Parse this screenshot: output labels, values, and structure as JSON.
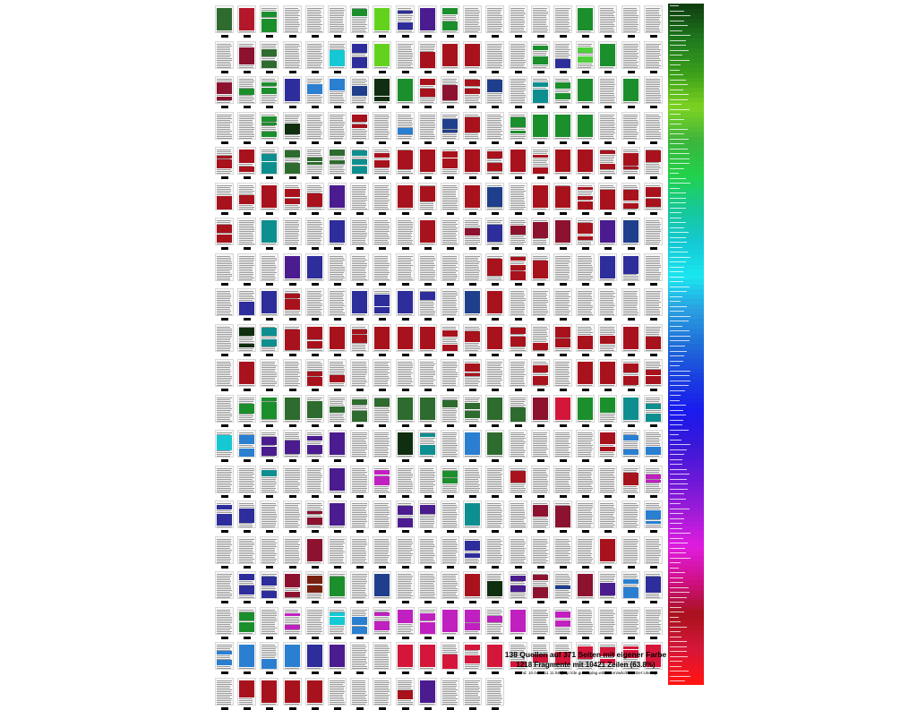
{
  "poster": {
    "footer": {
      "line1": "138 Quellen auf 371 Seiten mit eigener Farbe",
      "line2": "1218 Fragmente mit 10421 Zeilen (63.8%)",
      "line3": "Stand: 10.04.2011 11:58 (http://de.guttenplag.wikia.com/wiki/Benutzer:Ukwin)"
    },
    "grid": {
      "columns": 20,
      "rows": 19,
      "cell_colors": [
        "#2e6b2e",
        "#b4162a",
        "#1b8f2c",
        "#ffffff",
        "#ffffff",
        "#ffffff",
        "#1b8f2c",
        "#63d21d",
        "#2d2d9b",
        "#4a1c8f",
        "#1b8f2c",
        "#ffffff",
        "#ffffff",
        "#ffffff",
        "#ffffff",
        "#ffffff",
        "#1b8f2c",
        "#ffffff",
        "#ffffff",
        "#ffffff",
        "#ffffff",
        "#8c1230",
        "#2e6b2e",
        "#ffffff",
        "#ffffff",
        "#14c9d4",
        "#2d2d9b",
        "#63d21d",
        "#ffffff",
        "#a8121c",
        "#a8121c",
        "#a8121c",
        "#ffffff",
        "#ffffff",
        "#1b8f2c",
        "#2d2d9b",
        "#4fcf3b",
        "#1b8f2c",
        "#ffffff",
        "#ffffff",
        "#8c1230",
        "#1b8f2c",
        "#1b8f2c",
        "#2d2d9b",
        "#2a7fd1",
        "#2a7fd1",
        "#1f3f8c",
        "#102e10",
        "#1b8f2c",
        "#a8121c",
        "#8c1230",
        "#a8121c",
        "#1f3f8c",
        "#ffffff",
        "#0e8f8f",
        "#1b8f2c",
        "#1b8f2c",
        "#ffffff",
        "#1b8f2c",
        "#ffffff",
        "#ffffff",
        "#ffffff",
        "#1b8f2c",
        "#102e10",
        "#ffffff",
        "#ffffff",
        "#a8121c",
        "#ffffff",
        "#2a7fd1",
        "#ffffff",
        "#1f3f8c",
        "#a8121c",
        "#ffffff",
        "#1b8f2c",
        "#1b8f2c",
        "#1b8f2c",
        "#1b8f2c",
        "#ffffff",
        "#ffffff",
        "#ffffff",
        "#a8121c",
        "#a8121c",
        "#0e8f8f",
        "#2e6b2e",
        "#2e6b2e",
        "#2e6b2e",
        "#0e8f8f",
        "#a8121c",
        "#a8121c",
        "#a8121c",
        "#a8121c",
        "#a8121c",
        "#a8121c",
        "#a8121c",
        "#a8121c",
        "#a8121c",
        "#a8121c",
        "#a8121c",
        "#a8121c",
        "#a8121c",
        "#a8121c",
        "#a8121c",
        "#a8121c",
        "#a8121c",
        "#a8121c",
        "#4a1c8f",
        "#ffffff",
        "#ffffff",
        "#a8121c",
        "#a8121c",
        "#ffffff",
        "#a8121c",
        "#1f3f8c",
        "#ffffff",
        "#a8121c",
        "#a8121c",
        "#a8121c",
        "#a8121c",
        "#a8121c",
        "#a8121c",
        "#a8121c",
        "#ffffff",
        "#0e8f8f",
        "#ffffff",
        "#ffffff",
        "#2d2d9b",
        "#ffffff",
        "#ffffff",
        "#ffffff",
        "#a8121c",
        "#ffffff",
        "#8c1230",
        "#2d2d9b",
        "#8c1230",
        "#8c1230",
        "#8c1230",
        "#a8121c",
        "#4a1c8f",
        "#1f3f8c",
        "#ffffff",
        "#ffffff",
        "#ffffff",
        "#ffffff",
        "#4a1c8f",
        "#2d2d9b",
        "#ffffff",
        "#ffffff",
        "#ffffff",
        "#ffffff",
        "#ffffff",
        "#ffffff",
        "#ffffff",
        "#a8121c",
        "#a8121c",
        "#a8121c",
        "#ffffff",
        "#ffffff",
        "#2d2d9b",
        "#2d2d9b",
        "#ffffff",
        "#ffffff",
        "#2d2d9b",
        "#2d2d9b",
        "#a8121c",
        "#ffffff",
        "#ffffff",
        "#2d2d9b",
        "#2d2d9b",
        "#2d2d9b",
        "#2d2d9b",
        "#ffffff",
        "#1f3f8c",
        "#a8121c",
        "#ffffff",
        "#ffffff",
        "#ffffff",
        "#ffffff",
        "#ffffff",
        "#ffffff",
        "#ffffff",
        "#ffffff",
        "#102e10",
        "#0e8f8f",
        "#a8121c",
        "#a8121c",
        "#a8121c",
        "#a8121c",
        "#a8121c",
        "#a8121c",
        "#a8121c",
        "#a8121c",
        "#a8121c",
        "#a8121c",
        "#a8121c",
        "#a8121c",
        "#a8121c",
        "#a8121c",
        "#a8121c",
        "#a8121c",
        "#a8121c",
        "#ffffff",
        "#a8121c",
        "#ffffff",
        "#ffffff",
        "#a8121c",
        "#a8121c",
        "#ffffff",
        "#ffffff",
        "#ffffff",
        "#ffffff",
        "#ffffff",
        "#a8121c",
        "#ffffff",
        "#ffffff",
        "#a8121c",
        "#ffffff",
        "#a8121c",
        "#a8121c",
        "#a8121c",
        "#a8121c",
        "#ffffff",
        "#1b8f2c",
        "#1b8f2c",
        "#2e6b2e",
        "#2e6b2e",
        "#2e6b2e",
        "#2e6b2e",
        "#2e6b2e",
        "#2e6b2e",
        "#2e6b2e",
        "#2e6b2e",
        "#2e6b2e",
        "#2e6b2e",
        "#2e6b2e",
        "#8c1230",
        "#d4163a",
        "#1b8f2c",
        "#1b8f2c",
        "#0e8f8f",
        "#0e8f8f",
        "#14c9d4",
        "#2a7fd1",
        "#4a1c8f",
        "#4a1c8f",
        "#4a1c8f",
        "#4a1c8f",
        "#ffffff",
        "#ffffff",
        "#102e10",
        "#0e8f8f",
        "#ffffff",
        "#2a7fd1",
        "#2e6b2e",
        "#ffffff",
        "#ffffff",
        "#ffffff",
        "#ffffff",
        "#a8121c",
        "#2a7fd1",
        "#2a7fd1",
        "#ffffff",
        "#ffffff",
        "#0e8f8f",
        "#ffffff",
        "#ffffff",
        "#4a1c8f",
        "#ffffff",
        "#c020c0",
        "#ffffff",
        "#ffffff",
        "#1b8f2c",
        "#ffffff",
        "#ffffff",
        "#a8121c",
        "#ffffff",
        "#ffffff",
        "#ffffff",
        "#ffffff",
        "#a8121c",
        "#c020c0",
        "#2d2d9b",
        "#2d2d9b",
        "#ffffff",
        "#ffffff",
        "#8c1230",
        "#4a1c8f",
        "#ffffff",
        "#ffffff",
        "#4a1c8f",
        "#4a1c8f",
        "#ffffff",
        "#0e8f8f",
        "#ffffff",
        "#ffffff",
        "#8c1230",
        "#8c1230",
        "#ffffff",
        "#ffffff",
        "#ffffff",
        "#2a7fd1",
        "#ffffff",
        "#ffffff",
        "#ffffff",
        "#ffffff",
        "#8c1230",
        "#ffffff",
        "#ffffff",
        "#ffffff",
        "#ffffff",
        "#ffffff",
        "#ffffff",
        "#2d2d9b",
        "#ffffff",
        "#ffffff",
        "#ffffff",
        "#ffffff",
        "#ffffff",
        "#a8121c",
        "#ffffff",
        "#ffffff",
        "#ffffff",
        "#2d2d9b",
        "#2d2d9b",
        "#8c1230",
        "#7a2010",
        "#1b8f2c",
        "#ffffff",
        "#1f3f8c",
        "#ffffff",
        "#ffffff",
        "#ffffff",
        "#a8121c",
        "#102e10",
        "#4a1c8f",
        "#8c1230",
        "#1f3f8c",
        "#8c1230",
        "#4a1c8f",
        "#2a7fd1",
        "#2d2d9b",
        "#ffffff",
        "#1b8f2c",
        "#ffffff",
        "#c020c0",
        "#ffffff",
        "#14c9d4",
        "#2a7fd1",
        "#c020c0",
        "#c020c0",
        "#c020c0",
        "#c020c0",
        "#c020c0",
        "#c020c0",
        "#c020c0",
        "#ffffff",
        "#c020c0",
        "#ffffff",
        "#ffffff",
        "#ffffff",
        "#ffffff",
        "#2a7fd1",
        "#2a7fd1",
        "#2a7fd1",
        "#2a7fd1",
        "#2d2d9b",
        "#4a1c8f",
        "#ffffff",
        "#ffffff",
        "#d4163a",
        "#d4163a",
        "#d4163a",
        "#d4163a",
        "#d4163a",
        "#d4163a",
        "#d4163a",
        "#d4163a",
        "#d4163a",
        "#d4163a",
        "#d4163a",
        "#d4163a"
      ],
      "last_row_colors": [
        "#ffffff",
        "#a8121c",
        "#a8121c",
        "#a8121c",
        "#a8121c",
        "#ffffff",
        "#ffffff",
        "#ffffff",
        "#a8121c",
        "#4a1c8f",
        "#ffffff",
        "#ffffff",
        "#ffffff"
      ]
    },
    "legend": {
      "stops": [
        "#104010",
        "#1e7a1e",
        "#3aa01a",
        "#7ed321",
        "#3cb43c",
        "#22d24a",
        "#16c896",
        "#14c9d4",
        "#1ae6f0",
        "#2a9fe0",
        "#1f6fd8",
        "#1a3fe0",
        "#1a1aee",
        "#3a18d8",
        "#6a18d8",
        "#a01cd8",
        "#e01ce0",
        "#d01088",
        "#a8121c",
        "#d4163a",
        "#ff1414"
      ],
      "entry_count": 138
    }
  }
}
